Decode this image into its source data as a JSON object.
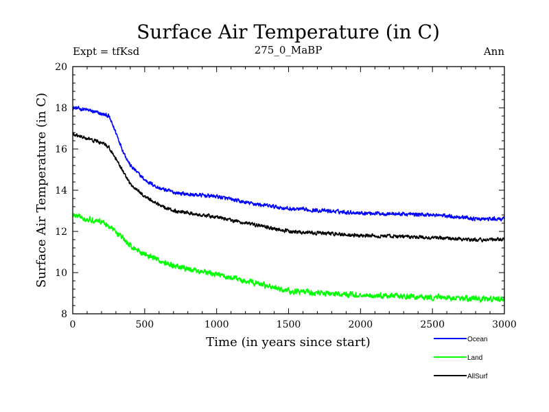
{
  "chart_data": {
    "type": "line",
    "title": "Surface Air Temperature (in C)",
    "subtitle_left": "Expt = tfKsd",
    "subtitle_center": "275_0_MaBP",
    "subtitle_right": "Ann",
    "xlabel": "Time (in years since start)",
    "ylabel": "Surface Air Temperature (in C)",
    "xlim": [
      0,
      3000
    ],
    "ylim": [
      8,
      20
    ],
    "xticks": [
      0,
      500,
      1000,
      1500,
      2000,
      2500,
      3000
    ],
    "yticks": [
      8,
      10,
      12,
      14,
      16,
      18,
      20
    ],
    "legend_position": "bottom-right, outside axes",
    "series": [
      {
        "name": "Ocean",
        "color": "#0000ff",
        "noise": 0.14,
        "x": [
          0,
          100,
          200,
          250,
          300,
          350,
          400,
          500,
          600,
          700,
          800,
          1000,
          1200,
          1500,
          2000,
          2500,
          2700,
          2800,
          3000
        ],
        "values": [
          18.0,
          17.9,
          17.7,
          17.6,
          16.8,
          15.9,
          15.2,
          14.5,
          14.1,
          13.9,
          13.8,
          13.7,
          13.4,
          13.1,
          12.9,
          12.8,
          12.7,
          12.6,
          12.6
        ]
      },
      {
        "name": "Land",
        "color": "#00ff00",
        "noise": 0.2,
        "x": [
          0,
          100,
          200,
          300,
          400,
          500,
          700,
          1000,
          1200,
          1500,
          2000,
          2500,
          3000
        ],
        "values": [
          12.8,
          12.6,
          12.5,
          12.0,
          11.3,
          10.9,
          10.3,
          9.9,
          9.6,
          9.1,
          8.9,
          8.8,
          8.7
        ]
      },
      {
        "name": "AllSurf",
        "color": "#000000",
        "noise": 0.13,
        "x": [
          0,
          100,
          200,
          250,
          300,
          350,
          400,
          500,
          600,
          700,
          800,
          1000,
          1200,
          1500,
          2000,
          2500,
          2800,
          3000
        ],
        "values": [
          16.7,
          16.5,
          16.3,
          16.1,
          15.5,
          14.9,
          14.3,
          13.7,
          13.3,
          13.0,
          12.9,
          12.7,
          12.4,
          12.0,
          11.8,
          11.7,
          11.6,
          11.6
        ]
      }
    ]
  }
}
